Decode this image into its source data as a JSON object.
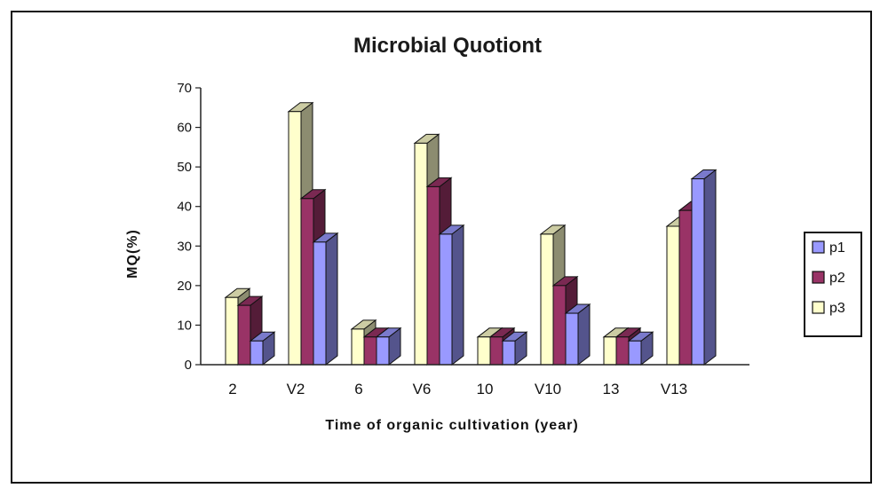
{
  "chart_data": {
    "type": "bar",
    "title": "Microbial Quotiont",
    "xlabel": "Time of organic cultivation (year)",
    "ylabel": "MQ(%)",
    "categories": [
      "2",
      "V2",
      "6",
      "V6",
      "10",
      "V10",
      "13",
      "V13"
    ],
    "ylim": [
      0,
      70
    ],
    "yticks": [
      0,
      10,
      20,
      30,
      40,
      50,
      60,
      70
    ],
    "grid": false,
    "legend_position": "right",
    "series": [
      {
        "name": "p1",
        "values": [
          6,
          31,
          7,
          33,
          6,
          13,
          6,
          47
        ],
        "color": "#9999ff"
      },
      {
        "name": "p2",
        "values": [
          15,
          42,
          7,
          45,
          7,
          20,
          7,
          39
        ],
        "color": "#993366"
      },
      {
        "name": "p3",
        "values": [
          17,
          64,
          9,
          56,
          7,
          33,
          7,
          35
        ],
        "color": "#ffffcc"
      }
    ]
  }
}
